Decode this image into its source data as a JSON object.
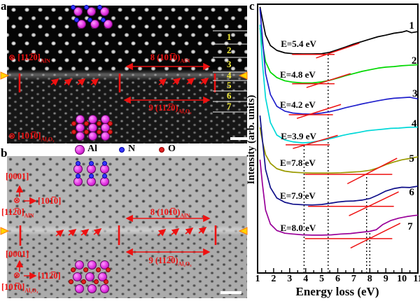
{
  "panels": {
    "a": {
      "label": "a",
      "zone_top": {
        "sym": "⊗",
        "text": "[112̅0]",
        "sub": "AlN"
      },
      "zone_bottom": {
        "sym": "⊗",
        "text": "[101̅0]",
        "sub": "Al₂O₃"
      },
      "dim_top": {
        "text": "8 (101̅0)",
        "sub": "AlN"
      },
      "dim_bottom": {
        "text": "9 (112̅0)",
        "sub": "Al₂O₃"
      },
      "row_labels": [
        "1",
        "2",
        "3",
        "4",
        "5",
        "6",
        "7"
      ]
    },
    "b": {
      "label": "b",
      "axes_top": {
        "vert": "[0001]",
        "sym": "⊗",
        "horiz": "[101̅0]",
        "zone": "[112̅0]",
        "zone_sub": "AlN"
      },
      "axes_bottom": {
        "vert": "[0001]",
        "sym": "⊗",
        "horiz": "[112̅0]",
        "zone": "[101̅0]",
        "zone_sub": "Al₂O₃"
      },
      "dim_top": {
        "text": "8 (101̅0)",
        "sub": "AlN"
      },
      "dim_bottom": {
        "text": "9 (112̅0)",
        "sub": "Al₂O₃"
      }
    }
  },
  "legend": {
    "items": [
      {
        "label": "Al",
        "color": "#e030e0"
      },
      {
        "label": "N",
        "color": "#3535ff"
      },
      {
        "label": "O",
        "color": "#e02020"
      }
    ]
  },
  "chart_data": {
    "type": "line",
    "panel_label": "c",
    "title": "",
    "xlabel": "Energy loss (eV)",
    "ylabel": "Intensity (arb. units)",
    "xlim": [
      1,
      11
    ],
    "xtick_labels": [
      "1",
      "2",
      "3",
      "4",
      "5",
      "6",
      "7",
      "8",
      "9",
      "10",
      "11"
    ],
    "grid": false,
    "legend_position": "none",
    "y_units_note": "arbitrary units; seven EELS spectra vertically offset, intensity given as fraction of plot height",
    "annotation_color": "#ee1111",
    "dotted_lines": [
      {
        "eV": 3.9,
        "u_top": 0.477
      },
      {
        "eV": 5.4,
        "u_top": 0.818
      },
      {
        "eV": 7.8,
        "u_top": 0.367
      },
      {
        "eV": 8.0,
        "u_top": 0.151
      }
    ],
    "curves": [
      {
        "num": "1",
        "onset_label": "E=5.4 eV",
        "onset_eV": 5.4,
        "color": "#000000",
        "label_pos": [
          2.45,
          0.87
        ],
        "num_pos": [
          10.45,
          0.938
        ],
        "red_h": {
          "e1": 3.15,
          "e2": 5.8,
          "u": 0.813
        },
        "red_s": [
          [
            4.65,
            0.8
          ],
          [
            7.35,
            0.855
          ]
        ],
        "points": [
          [
            1.15,
            0.99
          ],
          [
            1.3,
            0.943
          ],
          [
            1.5,
            0.885
          ],
          [
            1.8,
            0.846
          ],
          [
            2.2,
            0.828
          ],
          [
            2.7,
            0.819
          ],
          [
            3.2,
            0.816
          ],
          [
            3.8,
            0.815
          ],
          [
            4.4,
            0.815
          ],
          [
            5.0,
            0.816
          ],
          [
            5.5,
            0.821
          ],
          [
            6.0,
            0.831
          ],
          [
            6.5,
            0.841
          ],
          [
            7.0,
            0.852
          ],
          [
            7.5,
            0.861
          ],
          [
            8.0,
            0.87
          ],
          [
            8.5,
            0.879
          ],
          [
            9.0,
            0.885
          ],
          [
            9.5,
            0.892
          ],
          [
            10.0,
            0.896
          ],
          [
            10.3,
            0.901
          ],
          [
            10.6,
            0.894
          ],
          [
            11.0,
            0.898
          ]
        ]
      },
      {
        "num": "2",
        "onset_label": "E=4.8 eV",
        "onset_eV": 4.8,
        "color": "#00d800",
        "label_pos": [
          2.4,
          0.755
        ],
        "num_pos": [
          10.6,
          0.807
        ],
        "red_h": {
          "e1": 3.15,
          "e2": 5.8,
          "u": 0.704
        },
        "red_s": [
          [
            4.05,
            0.69
          ],
          [
            6.8,
            0.742
          ]
        ],
        "points": [
          [
            1.15,
            0.911
          ],
          [
            1.3,
            0.854
          ],
          [
            1.5,
            0.786
          ],
          [
            1.8,
            0.747
          ],
          [
            2.2,
            0.727
          ],
          [
            2.7,
            0.715
          ],
          [
            3.2,
            0.71
          ],
          [
            3.8,
            0.707
          ],
          [
            4.4,
            0.707
          ],
          [
            5.0,
            0.711
          ],
          [
            5.5,
            0.717
          ],
          [
            6.0,
            0.725
          ],
          [
            6.5,
            0.734
          ],
          [
            7.0,
            0.742
          ],
          [
            7.5,
            0.75
          ],
          [
            8.0,
            0.756
          ],
          [
            8.5,
            0.762
          ],
          [
            9.0,
            0.766
          ],
          [
            9.5,
            0.768
          ],
          [
            10.0,
            0.771
          ],
          [
            10.5,
            0.773
          ],
          [
            11.0,
            0.775
          ]
        ]
      },
      {
        "num": "3",
        "onset_label": "E=4.2 eV",
        "onset_eV": 4.2,
        "color": "#2020cc",
        "label_pos": [
          2.4,
          0.643
        ],
        "num_pos": [
          10.65,
          0.685
        ],
        "red_h": {
          "e1": 2.95,
          "e2": 5.7,
          "u": 0.589
        },
        "red_s": [
          [
            3.45,
            0.575
          ],
          [
            6.2,
            0.627
          ]
        ],
        "points": [
          [
            1.15,
            0.984
          ],
          [
            1.3,
            0.872
          ],
          [
            1.5,
            0.742
          ],
          [
            1.8,
            0.664
          ],
          [
            2.2,
            0.62
          ],
          [
            2.7,
            0.602
          ],
          [
            3.2,
            0.595
          ],
          [
            3.8,
            0.592
          ],
          [
            4.4,
            0.591
          ],
          [
            5.0,
            0.595
          ],
          [
            5.5,
            0.6
          ],
          [
            6.0,
            0.607
          ],
          [
            6.5,
            0.615
          ],
          [
            7.0,
            0.622
          ],
          [
            7.5,
            0.629
          ],
          [
            8.0,
            0.635
          ],
          [
            8.5,
            0.641
          ],
          [
            9.0,
            0.646
          ],
          [
            9.5,
            0.65
          ],
          [
            10.0,
            0.652
          ],
          [
            10.5,
            0.654
          ],
          [
            11.0,
            0.648
          ]
        ]
      },
      {
        "num": "4",
        "onset_label": "E=3.9 eV",
        "onset_eV": 3.9,
        "color": "#00d8d8",
        "label_pos": [
          2.45,
          0.526
        ],
        "num_pos": [
          10.6,
          0.573
        ],
        "red_h": {
          "e1": 2.75,
          "e2": 5.5,
          "u": 0.477
        },
        "red_s": [
          [
            3.2,
            0.463
          ],
          [
            6.0,
            0.512
          ]
        ],
        "points": [
          [
            1.15,
            0.924
          ],
          [
            1.3,
            0.781
          ],
          [
            1.5,
            0.651
          ],
          [
            1.8,
            0.56
          ],
          [
            2.2,
            0.513
          ],
          [
            2.7,
            0.495
          ],
          [
            3.2,
            0.488
          ],
          [
            3.8,
            0.484
          ],
          [
            4.3,
            0.486
          ],
          [
            4.8,
            0.491
          ],
          [
            5.3,
            0.497
          ],
          [
            5.8,
            0.504
          ],
          [
            6.3,
            0.512
          ],
          [
            6.8,
            0.518
          ],
          [
            7.3,
            0.523
          ],
          [
            7.8,
            0.529
          ],
          [
            8.3,
            0.532
          ],
          [
            8.8,
            0.535
          ],
          [
            9.3,
            0.538
          ],
          [
            9.8,
            0.539
          ],
          [
            10.4,
            0.542
          ],
          [
            11.0,
            0.543
          ]
        ]
      },
      {
        "num": "5",
        "onset_label": "E=7.8 eV",
        "onset_eV": 7.8,
        "color": "#9a9a00",
        "label_pos": [
          2.4,
          0.427
        ],
        "num_pos": [
          10.45,
          0.443
        ],
        "red_h": {
          "e1": 3.95,
          "e2": 9.4,
          "u": 0.367
        },
        "red_s": [
          [
            6.6,
            0.332
          ],
          [
            9.7,
            0.427
          ]
        ],
        "points": [
          [
            1.15,
            0.542
          ],
          [
            1.3,
            0.49
          ],
          [
            1.5,
            0.44
          ],
          [
            1.8,
            0.408
          ],
          [
            2.2,
            0.388
          ],
          [
            2.7,
            0.379
          ],
          [
            3.2,
            0.375
          ],
          [
            3.8,
            0.373
          ],
          [
            4.4,
            0.372
          ],
          [
            5.0,
            0.372
          ],
          [
            5.6,
            0.372
          ],
          [
            6.2,
            0.373
          ],
          [
            6.8,
            0.375
          ],
          [
            7.4,
            0.377
          ],
          [
            8.0,
            0.382
          ],
          [
            8.5,
            0.391
          ],
          [
            9.0,
            0.403
          ],
          [
            9.5,
            0.413
          ],
          [
            10.0,
            0.421
          ],
          [
            10.5,
            0.426
          ],
          [
            11.0,
            0.432
          ]
        ]
      },
      {
        "num": "6",
        "onset_label": "E=7.9 eV",
        "onset_eV": 7.9,
        "color": "#10108a",
        "label_pos": [
          2.4,
          0.305
        ],
        "num_pos": [
          10.45,
          0.318
        ],
        "red_h": {
          "e1": 4.15,
          "e2": 9.5,
          "u": 0.248
        },
        "red_s": [
          [
            6.7,
            0.213
          ],
          [
            9.8,
            0.302
          ]
        ],
        "points": [
          [
            1.15,
            0.586
          ],
          [
            1.3,
            0.495
          ],
          [
            1.5,
            0.385
          ],
          [
            1.8,
            0.318
          ],
          [
            2.2,
            0.279
          ],
          [
            2.7,
            0.263
          ],
          [
            3.2,
            0.256
          ],
          [
            3.8,
            0.254
          ],
          [
            4.4,
            0.253
          ],
          [
            5.0,
            0.255
          ],
          [
            5.5,
            0.259
          ],
          [
            6.0,
            0.264
          ],
          [
            6.5,
            0.267
          ],
          [
            7.0,
            0.268
          ],
          [
            7.5,
            0.271
          ],
          [
            8.0,
            0.277
          ],
          [
            8.5,
            0.29
          ],
          [
            9.0,
            0.305
          ],
          [
            9.5,
            0.314
          ],
          [
            10.0,
            0.319
          ],
          [
            10.5,
            0.318
          ],
          [
            11.0,
            0.323
          ]
        ]
      },
      {
        "num": "7",
        "onset_label": "E=8.0 eV",
        "onset_eV": 8.0,
        "color": "#990099",
        "label_pos": [
          2.42,
          0.185
        ],
        "num_pos": [
          10.35,
          0.19
        ],
        "red_h": {
          "e1": 3.95,
          "e2": 9.4,
          "u": 0.128
        },
        "red_s": [
          [
            6.8,
            0.093
          ],
          [
            9.9,
            0.185
          ]
        ],
        "points": [
          [
            1.15,
            0.422
          ],
          [
            1.3,
            0.331
          ],
          [
            1.5,
            0.234
          ],
          [
            1.8,
            0.182
          ],
          [
            2.2,
            0.158
          ],
          [
            2.7,
            0.148
          ],
          [
            3.2,
            0.145
          ],
          [
            3.8,
            0.142
          ],
          [
            4.4,
            0.141
          ],
          [
            5.0,
            0.141
          ],
          [
            5.6,
            0.142
          ],
          [
            6.2,
            0.145
          ],
          [
            6.8,
            0.147
          ],
          [
            7.4,
            0.151
          ],
          [
            8.0,
            0.155
          ],
          [
            8.4,
            0.161
          ],
          [
            8.8,
            0.18
          ],
          [
            9.3,
            0.195
          ],
          [
            9.8,
            0.204
          ],
          [
            10.3,
            0.21
          ],
          [
            10.8,
            0.214
          ],
          [
            11.0,
            0.215
          ]
        ]
      }
    ]
  }
}
